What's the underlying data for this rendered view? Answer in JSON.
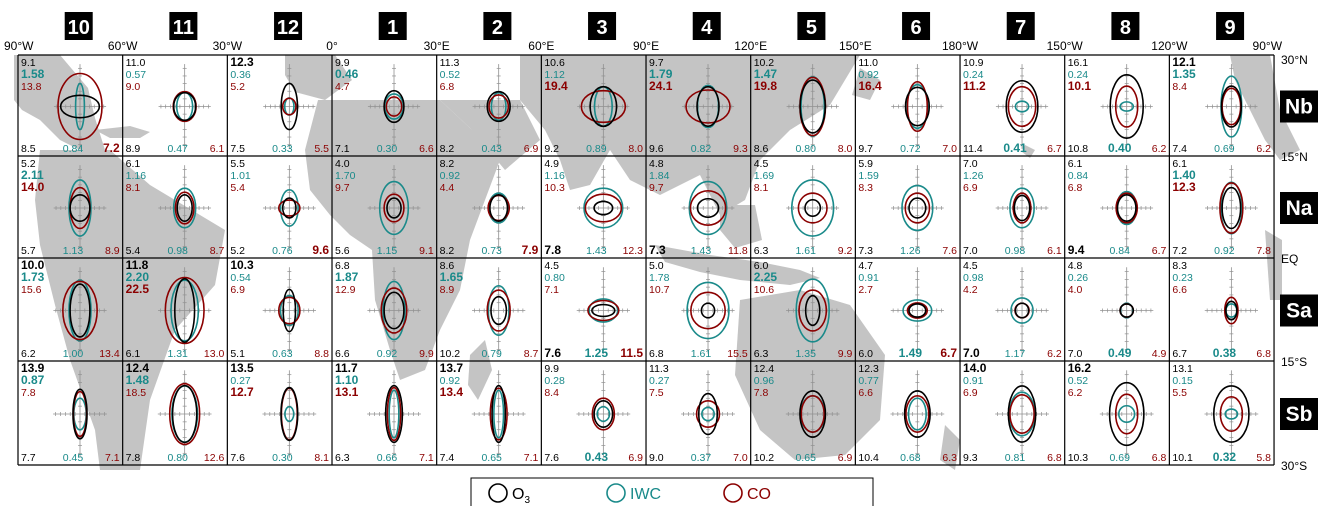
{
  "months": [
    "10",
    "11",
    "12",
    "1",
    "2",
    "3",
    "4",
    "5",
    "6",
    "7",
    "8",
    "9"
  ],
  "lon_labels": [
    "90°W",
    "60°W",
    "30°W",
    "0°",
    "30°E",
    "60°E",
    "90°E",
    "120°E",
    "150°E",
    "180°W",
    "150°W",
    "120°W",
    "90°W"
  ],
  "lat_labels": [
    "30°N",
    "15°N",
    "EQ",
    "15°S",
    "30°S"
  ],
  "rows": [
    "Nb",
    "Na",
    "Sa",
    "Sb"
  ],
  "colors": {
    "o3": "#000000",
    "iwc": "#1a8a8a",
    "co": "#8b0000",
    "map": "#c4c4c4",
    "cross": "#909090"
  },
  "legend": [
    {
      "name": "O",
      "sub": "3",
      "color": "#000000"
    },
    {
      "name": "IWC",
      "sub": "",
      "color": "#1a8a8a"
    },
    {
      "name": "CO",
      "sub": "",
      "color": "#8b0000"
    }
  ],
  "cells": [
    [
      "9.1 1.58 13.8 8.5 0.84 7.2 010 0 0 1 .88 .34 .20 .70 1 1 .48 .38 .63 .62",
      "11.0 0.57 9.0 8.9 0.47 6.1 000 0 0 0 .50 .42 .36 .43 .52 .45 .47 .45 .55 .36",
      "12.3 0.36 5.2 7.5 0.33 5.5 100 0 0 0 .37 .70 .21 .26 .30 .25 .32 .62 .41 .28",
      "9.9 0.46 4.7 7.1 0.30 6.6 010 0 0 0 .45 .48 .42 .38 .35 .29 .40 .38 .36 .30",
      "11.3 0.52 6.8 8.2 0.43 6.9 000 0 0 0 .52 .45 .33 .42 .44 .35 .48 .48 .38 .42",
      "10.6 1.12 19.4 9.2 0.89 8.0 001 0 0 0 .60 .60 .40 .60 1 .48 .58 .92 .48 .80",
      "9.7 1.79 24.1 9.6 0.82 9.3 011 0 0 0 .50 .60 .48 .64 1 .50 .57 .95 .45 .86",
      "10.2 1.47 19.8 8.6 0.80 8.0 011 0 0 0 .57 .80 .53 .90 .58 .88",
      "11.0 0.92 16.4 9.7 0.72 7.0 001 0 0 0 .54 .58 .47 .66 .45 .75",
      "10.9 0.24 11.2 11.4 0.41 6.7 001 0 1 0 .72 .78 .30 .16 .62 .60",
      "16.1 0.24 10.1 10.8 0.40 6.2 001 0 1 0 .75 .96 .30 .14 .50 .62",
      "12.1 1.35 8.4 7.4 0.69 6.2 110 0 0 0 .45 .62 .47 .92 .42 .55"
    ],
    [
      "5.2 2.11 14.0 5.7 1.13 8.9 011 0 0 0 .45 .40 .50 .85 .45 .62",
      "6.1 1.16 8.1 5.4 0.98 8.7 000 0 0 0 .34 .40 .50 .60 .42 .48",
      "5.5 1.01 5.4 5.2 0.76 9.6 000 0 0 1 .30 .30 .40 .55 .48 .24",
      "4.0 1.70 9.7 5.6 1.15 9.1 000 0 0 0 .32 .30 .65 .80 .45 .42",
      "8.2 0.92 4.4 8.2 0.73 7.9 000 0 0 1 .40 .40 .45 .45 .48 .38",
      "4.9 1.16 10.3 7.8 1.43 12.3 000 1 0 0 .42 .20 .88 .60 .82 .42",
      "4.8 1.84 9.7 7.3 1.43 11.8 000 1 0 0 .48 .28 .85 .80 .80 .52",
      "4.5 1.69 8.1 6.3 1.61 9.2 000 0 0 0 .35 .25 .95 .85 .65 .45",
      "5.9 1.59 8.3 7.3 1.26 7.6 000 0 0 0 .38 .30 .70 .68 .55 .45",
      "7.0 1.26 6.9 7.0 0.98 6.1 000 0 0 0 .35 .38 .55 .60 .40 .45",
      "6.1 0.84 6.8 9.4 0.84 6.7 000 1 0 0 .42 .40 .45 .50 .48 .45",
      "6.1 1.40 12.3 7.2 0.92 7.8 011 0 0 0 .42 .62 .48 .78 .52 .76"
    ],
    [
      "10.0 1.73 15.6 6.2 1.00 13.4 110 0 0 0 .45 .80 .50 .92 .78 .88",
      "11.8 2.20 22.5 6.1 1.31 13.0 111 0 0 0 .45 .96 .62 .92 .88 1",
      "10.3 0.54 6.9 5.1 0.63 8.8 100 0 0 0 .28 .64 .40 .45 .48 .40",
      "6.8 1.87 12.9 6.6 0.92 9.9 010 0 0 0 .45 .55 .50 .88 .58 .68",
      "8.6 1.65 8.9 10.2 0.79 8.7 010 0 0 0 .35 .42 .47 .75 .52 .62",
      "4.5 0.80 7.1 7.6 1.25 11.5 000 1 1 1 .52 .18 .65 .35 .70 .30",
      "5.0 1.78 10.7 6.8 1.61 15.5 000 0 0 0 .30 .22 .95 .85 .78 .55",
      "6.0 2.25 10.6 6.3 1.35 9.9 010 0 0 0 .32 .45 .75 .95 .62 .62",
      "4.7 0.91 2.7 6.0 1.49 6.7 000 0 1 1 .38 .20 .65 .32 .45 .23",
      "4.5 0.98 4.2 7.0 1.17 6.2 000 1 0 0 .30 .22 .50 .38 .32 .22",
      "4.8 0.26 4.0 7.0 0.49 4.9 000 0 1 0 .30 .20 .28 .22 .30 .20",
      "8.3 0.23 6.6 6.7 0.38 6.8 000 0 1 0 .25 .28 .25 .20 .30 .40"
    ],
    [
      "13.9 0.87 7.8 7.7 0.45 7.1 110 0 0 0 .32 .75 .28 .48 .30 .68",
      "12.4 1.48 18.5 7.8 0.80 12.6 110 0 0 0 .55 .86 .58 .85 .68 .92",
      "13.5 0.27 12.7 7.6 0.30 8.1 101 0 0 0 .38 .80 .20 .22 .36 .78",
      "11.7 1.10 13.1 6.3 0.66 7.1 111 0 0 0 .38 .86 .22 .72 .30 .80",
      "13.7 0.92 13.4 7.4 0.65 7.1 101 0 0 0 .30 .86 .22 .72 .38 .78",
      "9.9 0.28 8.4 7.6 0.43 6.9 000 0 1 0 .42 .40 .28 .22 .50 .48",
      "11.3 0.27 7.5 9.0 0.37 7.0 000 0 0 0 .42 .62 .28 .20 .52 .40",
      "12.4 0.96 7.8 10.2 0.65 6.9 000 0 0 0 .58 .70 .55 .55 .52 .55",
      "12.3 0.77 6.6 10.4 0.68 6.3 000 0 0 0 .58 .70 .40 .48 .52 .55",
      "14.0 0.91 6.9 9.3 0.81 6.8 100 0 0 0 .62 .85 .58 .66 .55 .58",
      "16.2 0.52 6.2 10.3 0.69 6.8 100 0 0 0 .78 .95 .36 .25 .50 .60",
      "13.1 0.15 5.5 10.1 0.32 5.8 000 0 1 0 .80 .85 .28 .15 .50 .52"
    ]
  ]
}
